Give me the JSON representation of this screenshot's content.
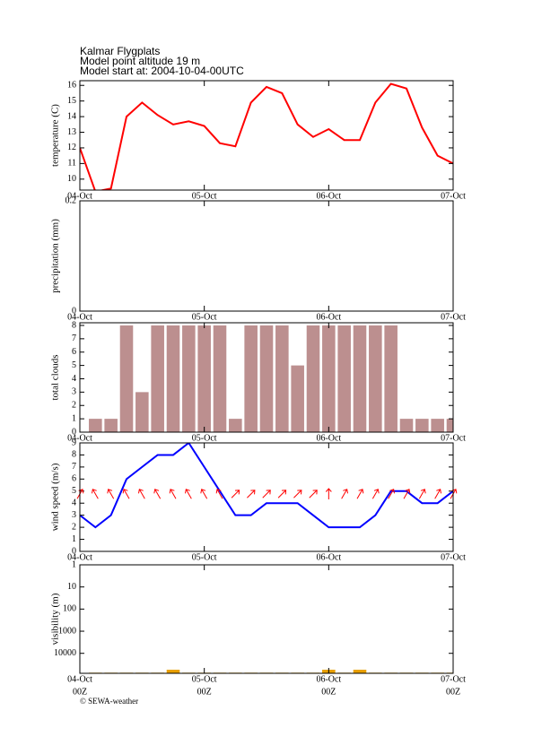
{
  "header": [
    "Kalmar Flygplats",
    "Model point altitude  19 m",
    "Model start at: 2004-10-04-00UTC"
  ],
  "footer": "© SEWA-weather",
  "chart_data": [
    {
      "type": "line",
      "y_label": "temperature (C)",
      "color": "#ff0000",
      "x": [
        0,
        3,
        6,
        9,
        12,
        15,
        18,
        21,
        24,
        27,
        30,
        33,
        36,
        39,
        42,
        45,
        48,
        51,
        54,
        57,
        60,
        63,
        66,
        69,
        72
      ],
      "values": [
        12.0,
        9.2,
        9.4,
        14.0,
        14.9,
        14.1,
        13.5,
        13.7,
        13.4,
        12.3,
        12.1,
        14.9,
        15.9,
        15.5,
        13.5,
        12.7,
        13.2,
        12.5,
        12.5,
        14.9,
        16.1,
        15.8,
        13.3,
        11.5,
        11.0
      ],
      "xlim": [
        0,
        72
      ],
      "xticks": [
        {
          "value": 0,
          "label": "04-Oct"
        },
        {
          "value": 24,
          "label": "05-Oct"
        },
        {
          "value": 48,
          "label": "06-Oct"
        },
        {
          "value": 72,
          "label": "07-Oct"
        }
      ],
      "ylim": [
        9.3,
        16.3
      ],
      "yticks": [
        10,
        11,
        12,
        13,
        14,
        15,
        16
      ]
    },
    {
      "type": "bar",
      "y_label": "precipitation (mm)",
      "xlim": [
        0,
        72
      ],
      "xticks": [
        {
          "value": 0,
          "label": "04-Oct"
        },
        {
          "value": 24,
          "label": "05-Oct"
        },
        {
          "value": 48,
          "label": "06-Oct"
        },
        {
          "value": 72,
          "label": "07-Oct"
        }
      ],
      "ylim": [
        0,
        0.2
      ],
      "yticks": [
        0,
        0.2
      ]
    },
    {
      "type": "bar",
      "y_label": "total clouds",
      "color": "#bc8f8f",
      "x": [
        3,
        6,
        9,
        12,
        15,
        18,
        21,
        24,
        27,
        30,
        33,
        36,
        39,
        42,
        45,
        48,
        51,
        54,
        57,
        60,
        63,
        66,
        69,
        72
      ],
      "values": [
        1,
        1,
        8,
        3,
        8,
        8,
        8,
        8,
        8,
        1,
        8,
        8,
        8,
        5,
        8,
        8,
        8,
        8,
        8,
        8,
        1,
        1,
        1,
        1
      ],
      "xlim": [
        0,
        72
      ],
      "xticks": [
        {
          "value": 0,
          "label": "04-Oct"
        },
        {
          "value": 24,
          "label": "05-Oct"
        },
        {
          "value": 48,
          "label": "06-Oct"
        },
        {
          "value": 72,
          "label": "07-Oct"
        }
      ],
      "ylim": [
        0,
        8.2
      ],
      "yticks": [
        0,
        1,
        2,
        3,
        4,
        5,
        6,
        7,
        8
      ]
    },
    {
      "type": "line",
      "y_label": "wind speed (m/s)",
      "color": "#0000ff",
      "x": [
        0,
        3,
        6,
        9,
        12,
        15,
        18,
        21,
        24,
        27,
        30,
        33,
        36,
        39,
        42,
        45,
        48,
        51,
        54,
        57,
        60,
        63,
        66,
        69,
        72
      ],
      "values": [
        3,
        2,
        3,
        6,
        7,
        8,
        8,
        9,
        7,
        5,
        3,
        3,
        4,
        4,
        4,
        3,
        2,
        2,
        2,
        3,
        5,
        5,
        4,
        4,
        5
      ],
      "arrows": {
        "color": "#ff0000",
        "x": [
          0,
          3,
          6,
          9,
          12,
          15,
          18,
          21,
          24,
          27,
          30,
          33,
          36,
          39,
          42,
          45,
          48,
          51,
          54,
          57,
          60,
          63,
          66,
          69,
          72
        ],
        "values": [
          30,
          330,
          330,
          330,
          330,
          330,
          330,
          330,
          330,
          330,
          45,
          45,
          45,
          45,
          45,
          45,
          0,
          30,
          30,
          30,
          30,
          30,
          30,
          30,
          30
        ]
      },
      "xlim": [
        0,
        72
      ],
      "xticks": [
        {
          "value": 0,
          "label": "04-Oct"
        },
        {
          "value": 24,
          "label": "05-Oct"
        },
        {
          "value": 48,
          "label": "06-Oct"
        },
        {
          "value": 72,
          "label": "07-Oct"
        }
      ],
      "ylim": [
        0,
        9
      ],
      "yticks": [
        0,
        1,
        2,
        3,
        4,
        5,
        6,
        7,
        8,
        9
      ]
    },
    {
      "type": "bar",
      "y_label": "visibility (m)",
      "color": "#e8a000",
      "log_scale": true,
      "inverted": true,
      "x": [
        3,
        6,
        9,
        12,
        15,
        18,
        21,
        24,
        27,
        30,
        33,
        36,
        39,
        42,
        45,
        48,
        51,
        54,
        57,
        60,
        63,
        66,
        69,
        72
      ],
      "values": [
        75000,
        75000,
        75000,
        75000,
        75000,
        55000,
        75000,
        75000,
        75000,
        75000,
        75000,
        75000,
        75000,
        75000,
        75000,
        55000,
        75000,
        55000,
        75000,
        75000,
        75000,
        75000,
        75000,
        75000
      ],
      "xlim": [
        0,
        72
      ],
      "xticks": [
        {
          "value": 0,
          "label": "04-Oct"
        },
        {
          "value": 24,
          "label": "05-Oct"
        },
        {
          "value": 48,
          "label": "06-Oct"
        },
        {
          "value": 72,
          "label": "07-Oct"
        }
      ],
      "xticks2": [
        {
          "value": 0,
          "label": "00Z"
        },
        {
          "value": 24,
          "label": "00Z"
        },
        {
          "value": 48,
          "label": "00Z"
        },
        {
          "value": 72,
          "label": "00Z"
        }
      ],
      "ylim": [
        1,
        80000
      ],
      "yticks": [
        1,
        10,
        100,
        1000,
        10000
      ]
    }
  ]
}
